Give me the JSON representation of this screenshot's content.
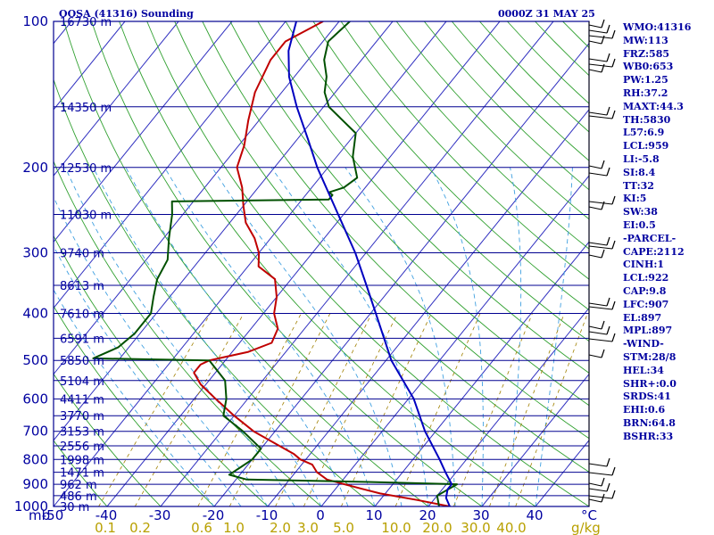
{
  "header": {
    "station": "OOSA (41316) Sounding",
    "datetime": "0000Z 31 MAY 25"
  },
  "indices": [
    "WMO:41316",
    "MW:113",
    "FRZ:585",
    "WB0:653",
    "PW:1.25",
    "RH:37.2",
    "MAXT:44.3",
    "TH:5830",
    "L57:6.9",
    "LCL:959",
    "LI:-5.8",
    "SI:8.4",
    "TT:32",
    "KI:5",
    "SW:38",
    "EI:0.5",
    "-PARCEL-",
    "CAPE:2112",
    "CINH:1",
    "LCL:922",
    "CAP:9.8",
    "LFC:907",
    "EL:897",
    "MPL:897",
    "-WIND-",
    "STM:28/8",
    "HEL:34",
    "SHR+:0.0",
    "SRDS:41",
    "EHI:0.6",
    "BRN:64.8",
    "BSHR:33"
  ],
  "colors": {
    "isobar": "#000090",
    "isotherm": "#3030c0",
    "dry_adiabat": "#30a030",
    "moist_adiabat": "#40a0e0",
    "mixing_ratio": "#a08000",
    "temperature": "#c00000",
    "dewpoint": "#005000",
    "parcel": "#0000c0",
    "wind": "#000000"
  },
  "chart_data": {
    "type": "line",
    "title": "OOSA (41316) Sounding 0000Z 31 MAY 25",
    "plot": "skew-T log-P diagram",
    "y_axis": {
      "label": "mb",
      "scale": "log",
      "range": [
        1000,
        100
      ]
    },
    "x_axis": {
      "label": "°C",
      "range": [
        -50,
        50
      ]
    },
    "pressure_labels": [
      100,
      200,
      300,
      400,
      500,
      600,
      700,
      800,
      900,
      1000
    ],
    "temperature_ticks": [
      -50,
      -40,
      -30,
      -20,
      -10,
      0,
      10,
      20,
      30,
      40
    ],
    "mixing_ratio_axis": {
      "unit": "g/kg",
      "labels": [
        "0.1",
        "0.2",
        "0.6",
        "1.0",
        "2.0",
        "3.0",
        "5.0",
        "10.0",
        "20.0",
        "30.0",
        "40.0"
      ]
    },
    "height_labels": [
      {
        "p": 100,
        "label": "16730 m"
      },
      {
        "p": 150,
        "label": "14350 m"
      },
      {
        "p": 200,
        "label": "12530 m"
      },
      {
        "p": 250,
        "label": "11030 m"
      },
      {
        "p": 300,
        "label": "9740 m"
      },
      {
        "p": 350,
        "label": "8613 m"
      },
      {
        "p": 400,
        "label": "7610 m"
      },
      {
        "p": 450,
        "label": "6591 m"
      },
      {
        "p": 500,
        "label": "5850 m"
      },
      {
        "p": 550,
        "label": "5104 m"
      },
      {
        "p": 600,
        "label": "4411 m"
      },
      {
        "p": 650,
        "label": "3770 m"
      },
      {
        "p": 700,
        "label": "3153 m"
      },
      {
        "p": 750,
        "label": "2556 m"
      },
      {
        "p": 800,
        "label": "1998 m"
      },
      {
        "p": 850,
        "label": "1471 m"
      },
      {
        "p": 900,
        "label": "962 m"
      },
      {
        "p": 950,
        "label": "486 m"
      },
      {
        "p": 1000,
        "label": "30 m"
      }
    ],
    "series": [
      {
        "key": "temperature",
        "points": [
          [
            1000,
            24
          ],
          [
            970,
            17
          ],
          [
            940,
            9
          ],
          [
            920,
            5
          ],
          [
            900,
            1
          ],
          [
            880,
            -3
          ],
          [
            850,
            -6
          ],
          [
            820,
            -8
          ],
          [
            800,
            -11
          ],
          [
            780,
            -13
          ],
          [
            750,
            -17
          ],
          [
            700,
            -24
          ],
          [
            650,
            -30
          ],
          [
            600,
            -36
          ],
          [
            560,
            -41
          ],
          [
            530,
            -44
          ],
          [
            510,
            -44
          ],
          [
            500,
            -43
          ],
          [
            480,
            -37
          ],
          [
            460,
            -34
          ],
          [
            430,
            -35
          ],
          [
            400,
            -38
          ],
          [
            370,
            -40
          ],
          [
            340,
            -43
          ],
          [
            320,
            -48
          ],
          [
            300,
            -50
          ],
          [
            280,
            -53
          ],
          [
            260,
            -57
          ],
          [
            240,
            -60
          ],
          [
            220,
            -63
          ],
          [
            200,
            -67
          ],
          [
            180,
            -69
          ],
          [
            160,
            -72
          ],
          [
            140,
            -75
          ],
          [
            120,
            -77
          ],
          [
            110,
            -77
          ],
          [
            100,
            -73
          ]
        ]
      },
      {
        "key": "dewpoint",
        "points": [
          [
            1000,
            22
          ],
          [
            950,
            20
          ],
          [
            900,
            22
          ],
          [
            890,
            5
          ],
          [
            880,
            -18
          ],
          [
            860,
            -22
          ],
          [
            830,
            -21
          ],
          [
            800,
            -20
          ],
          [
            760,
            -20
          ],
          [
            700,
            -26
          ],
          [
            650,
            -32
          ],
          [
            600,
            -34
          ],
          [
            550,
            -37
          ],
          [
            500,
            -43
          ],
          [
            495,
            -65
          ],
          [
            470,
            -62
          ],
          [
            440,
            -61
          ],
          [
            400,
            -61
          ],
          [
            370,
            -63
          ],
          [
            340,
            -65
          ],
          [
            310,
            -66
          ],
          [
            280,
            -69
          ],
          [
            250,
            -72
          ],
          [
            235,
            -74
          ],
          [
            233,
            -45
          ],
          [
            228,
            -45
          ],
          [
            225,
            -46
          ],
          [
            220,
            -44
          ],
          [
            210,
            -43
          ],
          [
            190,
            -47
          ],
          [
            170,
            -50
          ],
          [
            150,
            -59
          ],
          [
            140,
            -62
          ],
          [
            130,
            -64
          ],
          [
            120,
            -67
          ],
          [
            110,
            -69
          ],
          [
            100,
            -68
          ]
        ]
      },
      {
        "key": "parcel",
        "points": [
          [
            1000,
            24
          ],
          [
            960,
            22
          ],
          [
            922,
            21
          ],
          [
            900,
            21
          ],
          [
            850,
            18
          ],
          [
            800,
            15
          ],
          [
            700,
            8
          ],
          [
            600,
            1
          ],
          [
            500,
            -9
          ],
          [
            400,
            -19
          ],
          [
            350,
            -25
          ],
          [
            300,
            -32
          ],
          [
            250,
            -41
          ],
          [
            200,
            -52
          ],
          [
            175,
            -58
          ],
          [
            150,
            -65
          ],
          [
            130,
            -71
          ],
          [
            115,
            -75
          ],
          [
            100,
            -78
          ]
        ]
      }
    ]
  }
}
